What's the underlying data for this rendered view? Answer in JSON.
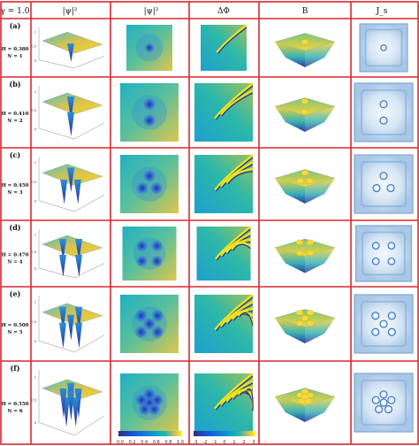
{
  "header": {
    "gamma": "γ = 1.0",
    "col_psi3d": "|ψ|²",
    "col_psi2d": "|ψ|²",
    "col_phase": "ΔΦ",
    "col_field": "B",
    "col_current": "J_s"
  },
  "rows": [
    {
      "tag": "(a)",
      "H": "H = 0.380",
      "N": "N = 1",
      "vortices": 1
    },
    {
      "tag": "(b)",
      "H": "H = 0.410",
      "N": "N = 2",
      "vortices": 2
    },
    {
      "tag": "(c)",
      "H": "H = 0.450",
      "N": "N = 3",
      "vortices": 3
    },
    {
      "tag": "(d)",
      "H": "H = 0.470",
      "N": "N = 4",
      "vortices": 4
    },
    {
      "tag": "(e)",
      "H": "H = 0.500",
      "N": "N = 5",
      "vortices": 5
    },
    {
      "tag": "(f)",
      "H": "H = 0.550",
      "N": "N = 6",
      "vortices": 6
    }
  ],
  "colorbars": {
    "psi": {
      "ticks": [
        "0.0",
        "0.2",
        "0.4",
        "0.6",
        "0.8",
        "1.0"
      ]
    },
    "phase": {
      "ticks": [
        "-3",
        "-2",
        "-1",
        "0",
        "1",
        "2",
        "3"
      ]
    }
  },
  "colors": {
    "grid": "#d9282f",
    "parula_low": "#352a87",
    "parula_mid": "#10b3c6",
    "parula_high": "#f9fb0e",
    "current": "#3a78c0"
  }
}
